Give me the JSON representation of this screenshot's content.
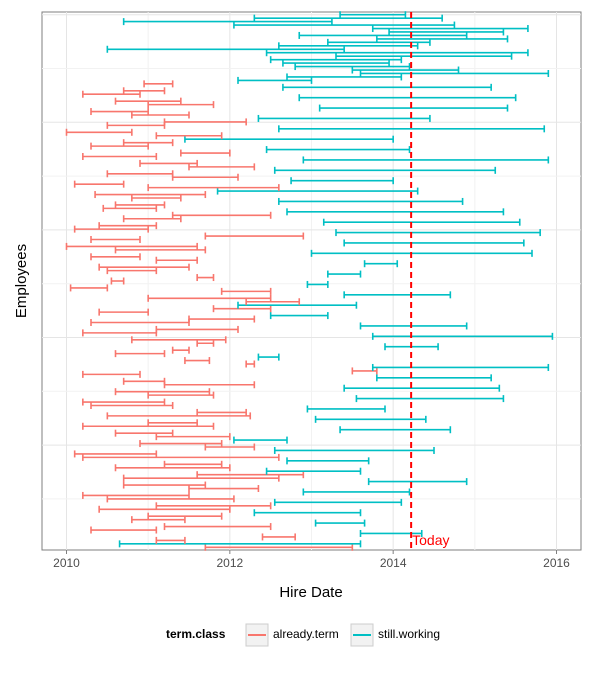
{
  "chart_data": {
    "type": "interval",
    "xlabel": "Hire Date",
    "ylabel": "Employees",
    "xlim": [
      2009.7,
      2016.3
    ],
    "ylim": [
      0.5,
      100.5
    ],
    "x_ticks": [
      2010,
      2012,
      2014,
      2016
    ],
    "x_tick_labels": [
      "2010",
      "2012",
      "2014",
      "2016"
    ],
    "today": 2014.22,
    "today_label": "Today",
    "today_color": "#ff0000",
    "grid": true,
    "legend": {
      "title": "term.class",
      "position": "bottom",
      "entries": [
        {
          "key": "already.term",
          "label": "already.term",
          "color": "#f8766d"
        },
        {
          "key": "still.working",
          "label": "still.working",
          "color": "#00bfc4"
        }
      ]
    },
    "series": [
      {
        "name": "already.term",
        "intervals": [
          [
            2011.7,
            2013.5
          ],
          [
            2011.1,
            2011.45
          ],
          [
            2012.4,
            2012.8
          ],
          [
            2010.3,
            2011.1
          ],
          [
            2011.2,
            2012.5
          ],
          [
            2010.8,
            2011.45
          ],
          [
            2011.0,
            2011.9
          ],
          [
            2010.4,
            2012.0
          ],
          [
            2011.1,
            2012.5
          ],
          [
            2010.5,
            2012.05
          ],
          [
            2010.2,
            2011.5
          ],
          [
            2011.5,
            2012.35
          ],
          [
            2010.7,
            2011.7
          ],
          [
            2010.7,
            2012.6
          ],
          [
            2011.6,
            2012.9
          ],
          [
            2010.6,
            2012.0
          ],
          [
            2011.2,
            2011.9
          ],
          [
            2010.2,
            2012.6
          ],
          [
            2010.1,
            2011.1
          ],
          [
            2011.7,
            2012.3
          ],
          [
            2010.9,
            2011.9
          ],
          [
            2011.1,
            2012.0
          ],
          [
            2010.6,
            2011.3
          ],
          [
            2010.2,
            2011.8
          ],
          [
            2011.0,
            2011.6
          ],
          [
            2010.5,
            2012.25
          ],
          [
            2011.6,
            2012.2
          ],
          [
            2010.3,
            2011.3
          ],
          [
            2010.2,
            2011.2
          ],
          [
            2011.0,
            2011.8
          ],
          [
            2010.6,
            2011.75
          ],
          [
            2011.2,
            2012.3
          ],
          [
            2010.7,
            2011.2
          ],
          [
            2010.2,
            2010.9
          ],
          [
            2013.5,
            2013.8
          ],
          [
            2012.2,
            2012.3
          ],
          [
            2011.45,
            2011.75
          ],
          [
            2010.6,
            2011.2
          ],
          [
            2011.3,
            2011.5
          ],
          [
            2011.6,
            2011.8
          ],
          [
            2010.8,
            2011.95
          ],
          [
            2010.2,
            2011.1
          ],
          [
            2011.1,
            2012.1
          ],
          [
            2010.3,
            2011.5
          ],
          [
            2011.5,
            2012.3
          ],
          [
            2010.4,
            2011.0
          ],
          [
            2011.8,
            2012.5
          ],
          [
            2012.2,
            2012.85
          ],
          [
            2011.0,
            2012.5
          ],
          [
            2011.9,
            2012.5
          ],
          [
            2010.05,
            2010.5
          ],
          [
            2010.55,
            2010.7
          ],
          [
            2011.6,
            2011.8
          ],
          [
            2010.5,
            2011.1
          ],
          [
            2010.4,
            2011.5
          ],
          [
            2011.1,
            2011.6
          ],
          [
            2010.3,
            2010.9
          ],
          [
            2010.6,
            2011.7
          ],
          [
            2010.0,
            2011.6
          ],
          [
            2010.3,
            2010.9
          ],
          [
            2011.7,
            2012.9
          ],
          [
            2010.1,
            2011.0
          ],
          [
            2010.4,
            2011.1
          ],
          [
            2010.7,
            2011.4
          ],
          [
            2011.3,
            2012.5
          ],
          [
            2010.45,
            2011.1
          ],
          [
            2010.6,
            2011.2
          ],
          [
            2010.8,
            2011.4
          ],
          [
            2010.35,
            2011.7
          ],
          [
            2011.0,
            2012.6
          ],
          [
            2010.1,
            2010.7
          ],
          [
            2011.3,
            2012.1
          ],
          [
            2010.5,
            2011.3
          ],
          [
            2011.5,
            2012.3
          ],
          [
            2010.9,
            2011.6
          ],
          [
            2010.2,
            2011.1
          ],
          [
            2011.4,
            2012.0
          ],
          [
            2010.3,
            2011.0
          ],
          [
            2010.7,
            2011.3
          ],
          [
            2011.1,
            2011.9
          ],
          [
            2010.0,
            2010.8
          ],
          [
            2010.5,
            2011.2
          ],
          [
            2011.2,
            2012.2
          ],
          [
            2010.8,
            2011.5
          ],
          [
            2010.3,
            2011.0
          ],
          [
            2011.0,
            2011.8
          ],
          [
            2010.6,
            2011.4
          ],
          [
            2010.2,
            2010.9
          ],
          [
            2010.7,
            2011.2
          ],
          [
            2010.95,
            2011.3
          ]
        ]
      },
      {
        "name": "still.working",
        "intervals": [
          [
            2010.65,
            2013.6
          ],
          [
            2013.6,
            2014.35
          ],
          [
            2013.05,
            2013.65
          ],
          [
            2012.3,
            2013.6
          ],
          [
            2012.55,
            2014.1
          ],
          [
            2012.9,
            2014.2
          ],
          [
            2013.7,
            2014.9
          ],
          [
            2012.45,
            2013.6
          ],
          [
            2012.7,
            2013.7
          ],
          [
            2012.55,
            2014.5
          ],
          [
            2012.05,
            2012.7
          ],
          [
            2013.35,
            2014.7
          ],
          [
            2013.05,
            2014.4
          ],
          [
            2012.95,
            2013.9
          ],
          [
            2013.55,
            2015.35
          ],
          [
            2013.4,
            2015.3
          ],
          [
            2013.8,
            2015.2
          ],
          [
            2013.75,
            2015.9
          ],
          [
            2012.35,
            2012.6
          ],
          [
            2013.9,
            2014.55
          ],
          [
            2013.75,
            2015.95
          ],
          [
            2013.6,
            2014.9
          ],
          [
            2012.5,
            2013.2
          ],
          [
            2012.1,
            2013.55
          ],
          [
            2013.4,
            2014.7
          ],
          [
            2012.95,
            2013.2
          ],
          [
            2013.2,
            2013.6
          ],
          [
            2013.65,
            2014.05
          ],
          [
            2013.0,
            2015.7
          ],
          [
            2013.4,
            2015.6
          ],
          [
            2013.3,
            2015.8
          ],
          [
            2013.15,
            2015.55
          ],
          [
            2012.7,
            2015.35
          ],
          [
            2012.6,
            2014.85
          ],
          [
            2011.85,
            2014.3
          ],
          [
            2012.75,
            2014.0
          ],
          [
            2012.55,
            2015.25
          ],
          [
            2012.9,
            2015.9
          ],
          [
            2012.45,
            2014.2
          ],
          [
            2011.45,
            2014.0
          ],
          [
            2012.6,
            2015.85
          ],
          [
            2012.35,
            2014.45
          ],
          [
            2013.1,
            2015.4
          ],
          [
            2012.85,
            2015.5
          ],
          [
            2012.65,
            2015.2
          ],
          [
            2012.1,
            2013.0
          ],
          [
            2012.7,
            2014.1
          ],
          [
            2013.6,
            2015.9
          ],
          [
            2013.5,
            2014.8
          ],
          [
            2012.8,
            2014.2
          ],
          [
            2012.65,
            2013.95
          ],
          [
            2012.5,
            2014.1
          ],
          [
            2013.3,
            2015.45
          ],
          [
            2012.45,
            2015.65
          ],
          [
            2010.5,
            2013.4
          ],
          [
            2012.6,
            2014.3
          ],
          [
            2013.2,
            2014.45
          ],
          [
            2013.8,
            2015.4
          ],
          [
            2012.85,
            2014.9
          ],
          [
            2013.95,
            2015.35
          ],
          [
            2013.75,
            2015.65
          ],
          [
            2012.05,
            2014.75
          ],
          [
            2010.7,
            2013.25
          ],
          [
            2012.3,
            2014.6
          ],
          [
            2013.35,
            2014.15
          ]
        ]
      }
    ]
  }
}
